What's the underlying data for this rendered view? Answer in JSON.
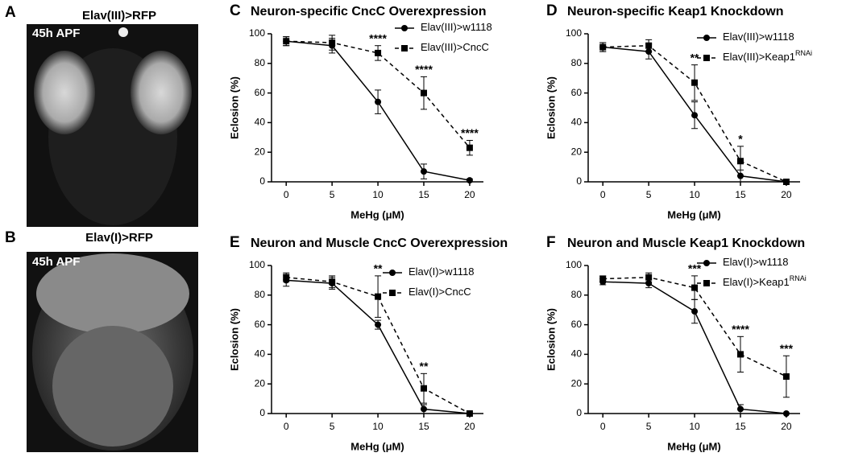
{
  "images": [
    {
      "panel": "A",
      "title": "Elav(III)>RFP",
      "stage": "45h APF"
    },
    {
      "panel": "B",
      "title": "Elav(I)>RFP",
      "stage": "45h APF"
    }
  ],
  "chart_data": [
    {
      "type": "line",
      "panel": "C",
      "title": "Neuron-specific CncC Overexpression",
      "x_label": "MeHg (μM)",
      "y_label": "Eclosion (%)",
      "x": [
        0,
        5,
        10,
        15,
        20
      ],
      "xlim": [
        -1.6,
        21.5
      ],
      "xticks": [
        0,
        5,
        10,
        15,
        20
      ],
      "ylim": [
        0,
        100
      ],
      "yticks": [
        0,
        20,
        40,
        60,
        80,
        100
      ],
      "series": [
        {
          "name": "Elav(III)>w1118",
          "color": "#000000",
          "marker": "circle",
          "dashed": false,
          "values": [
            95,
            92,
            54,
            7,
            1
          ],
          "errors": [
            3,
            5,
            8,
            5,
            1
          ]
        },
        {
          "name": "Elav(III)>CncC",
          "color": "#000000",
          "marker": "square",
          "dashed": true,
          "values": [
            95,
            94,
            87,
            60,
            23
          ],
          "errors": [
            3,
            5,
            5,
            11,
            5
          ]
        }
      ],
      "annotations": [
        {
          "x": 10,
          "label": "****"
        },
        {
          "x": 15,
          "label": "****"
        },
        {
          "x": 20,
          "label": "****"
        }
      ]
    },
    {
      "type": "line",
      "panel": "D",
      "title": "Neuron-specific Keap1 Knockdown",
      "x_label": "MeHg (μM)",
      "y_label": "Eclosion (%)",
      "x": [
        0,
        5,
        10,
        15,
        20
      ],
      "xlim": [
        -1.6,
        21.5
      ],
      "xticks": [
        0,
        5,
        10,
        15,
        20
      ],
      "ylim": [
        0,
        100
      ],
      "yticks": [
        0,
        20,
        40,
        60,
        80,
        100
      ],
      "series": [
        {
          "name": "Elav(III)>w1118",
          "color": "#000000",
          "marker": "circle",
          "dashed": false,
          "values": [
            91,
            88,
            45,
            4,
            0
          ],
          "errors": [
            3,
            5,
            9,
            4,
            0
          ]
        },
        {
          "name": "Elav(III)>Keap1",
          "name_sup": "RNAi",
          "color": "#000000",
          "marker": "square",
          "dashed": true,
          "values": [
            91,
            92,
            67,
            14,
            0
          ],
          "errors": [
            3,
            4,
            12,
            10,
            0
          ]
        }
      ],
      "annotations": [
        {
          "x": 10,
          "label": "**"
        },
        {
          "x": 15,
          "label": "*"
        }
      ]
    },
    {
      "type": "line",
      "panel": "E",
      "title": "Neuron and Muscle CncC Overexpression",
      "x_label": "MeHg (μM)",
      "y_label": "Eclosion (%)",
      "x": [
        0,
        5,
        10,
        15,
        20
      ],
      "xlim": [
        -1.6,
        21.5
      ],
      "xticks": [
        0,
        5,
        10,
        15,
        20
      ],
      "ylim": [
        0,
        100
      ],
      "yticks": [
        0,
        20,
        40,
        60,
        80,
        100
      ],
      "series": [
        {
          "name": "Elav(I)>w1118",
          "color": "#000000",
          "marker": "circle",
          "dashed": false,
          "values": [
            90,
            88,
            60,
            3,
            0
          ],
          "errors": [
            4,
            4,
            3,
            3,
            0
          ]
        },
        {
          "name": "Elav(I)>CncC",
          "color": "#000000",
          "marker": "square",
          "dashed": true,
          "values": [
            92,
            89,
            79,
            17,
            0
          ],
          "errors": [
            3,
            4,
            14,
            10,
            0
          ]
        }
      ],
      "annotations": [
        {
          "x": 10,
          "label": "**"
        },
        {
          "x": 15,
          "label": "**"
        }
      ]
    },
    {
      "type": "line",
      "panel": "F",
      "title": "Neuron and Muscle Keap1 Knockdown",
      "x_label": "MeHg (μM)",
      "y_label": "Eclosion (%)",
      "x": [
        0,
        5,
        10,
        15,
        20
      ],
      "xlim": [
        -1.6,
        21.5
      ],
      "xticks": [
        0,
        5,
        10,
        15,
        20
      ],
      "ylim": [
        0,
        100
      ],
      "yticks": [
        0,
        20,
        40,
        60,
        80,
        100
      ],
      "series": [
        {
          "name": "Elav(I)>w1118",
          "color": "#000000",
          "marker": "circle",
          "dashed": false,
          "values": [
            89,
            88,
            69,
            3,
            0
          ],
          "errors": [
            2,
            3,
            8,
            3,
            0
          ]
        },
        {
          "name": "Elav(I)>Keap1",
          "name_sup": "RNAi",
          "color": "#000000",
          "marker": "square",
          "dashed": true,
          "values": [
            91,
            92,
            85,
            40,
            25
          ],
          "errors": [
            2,
            3,
            8,
            12,
            14
          ]
        }
      ],
      "annotations": [
        {
          "x": 10,
          "label": "***"
        },
        {
          "x": 15,
          "label": "****"
        },
        {
          "x": 20,
          "label": "***"
        }
      ]
    }
  ]
}
